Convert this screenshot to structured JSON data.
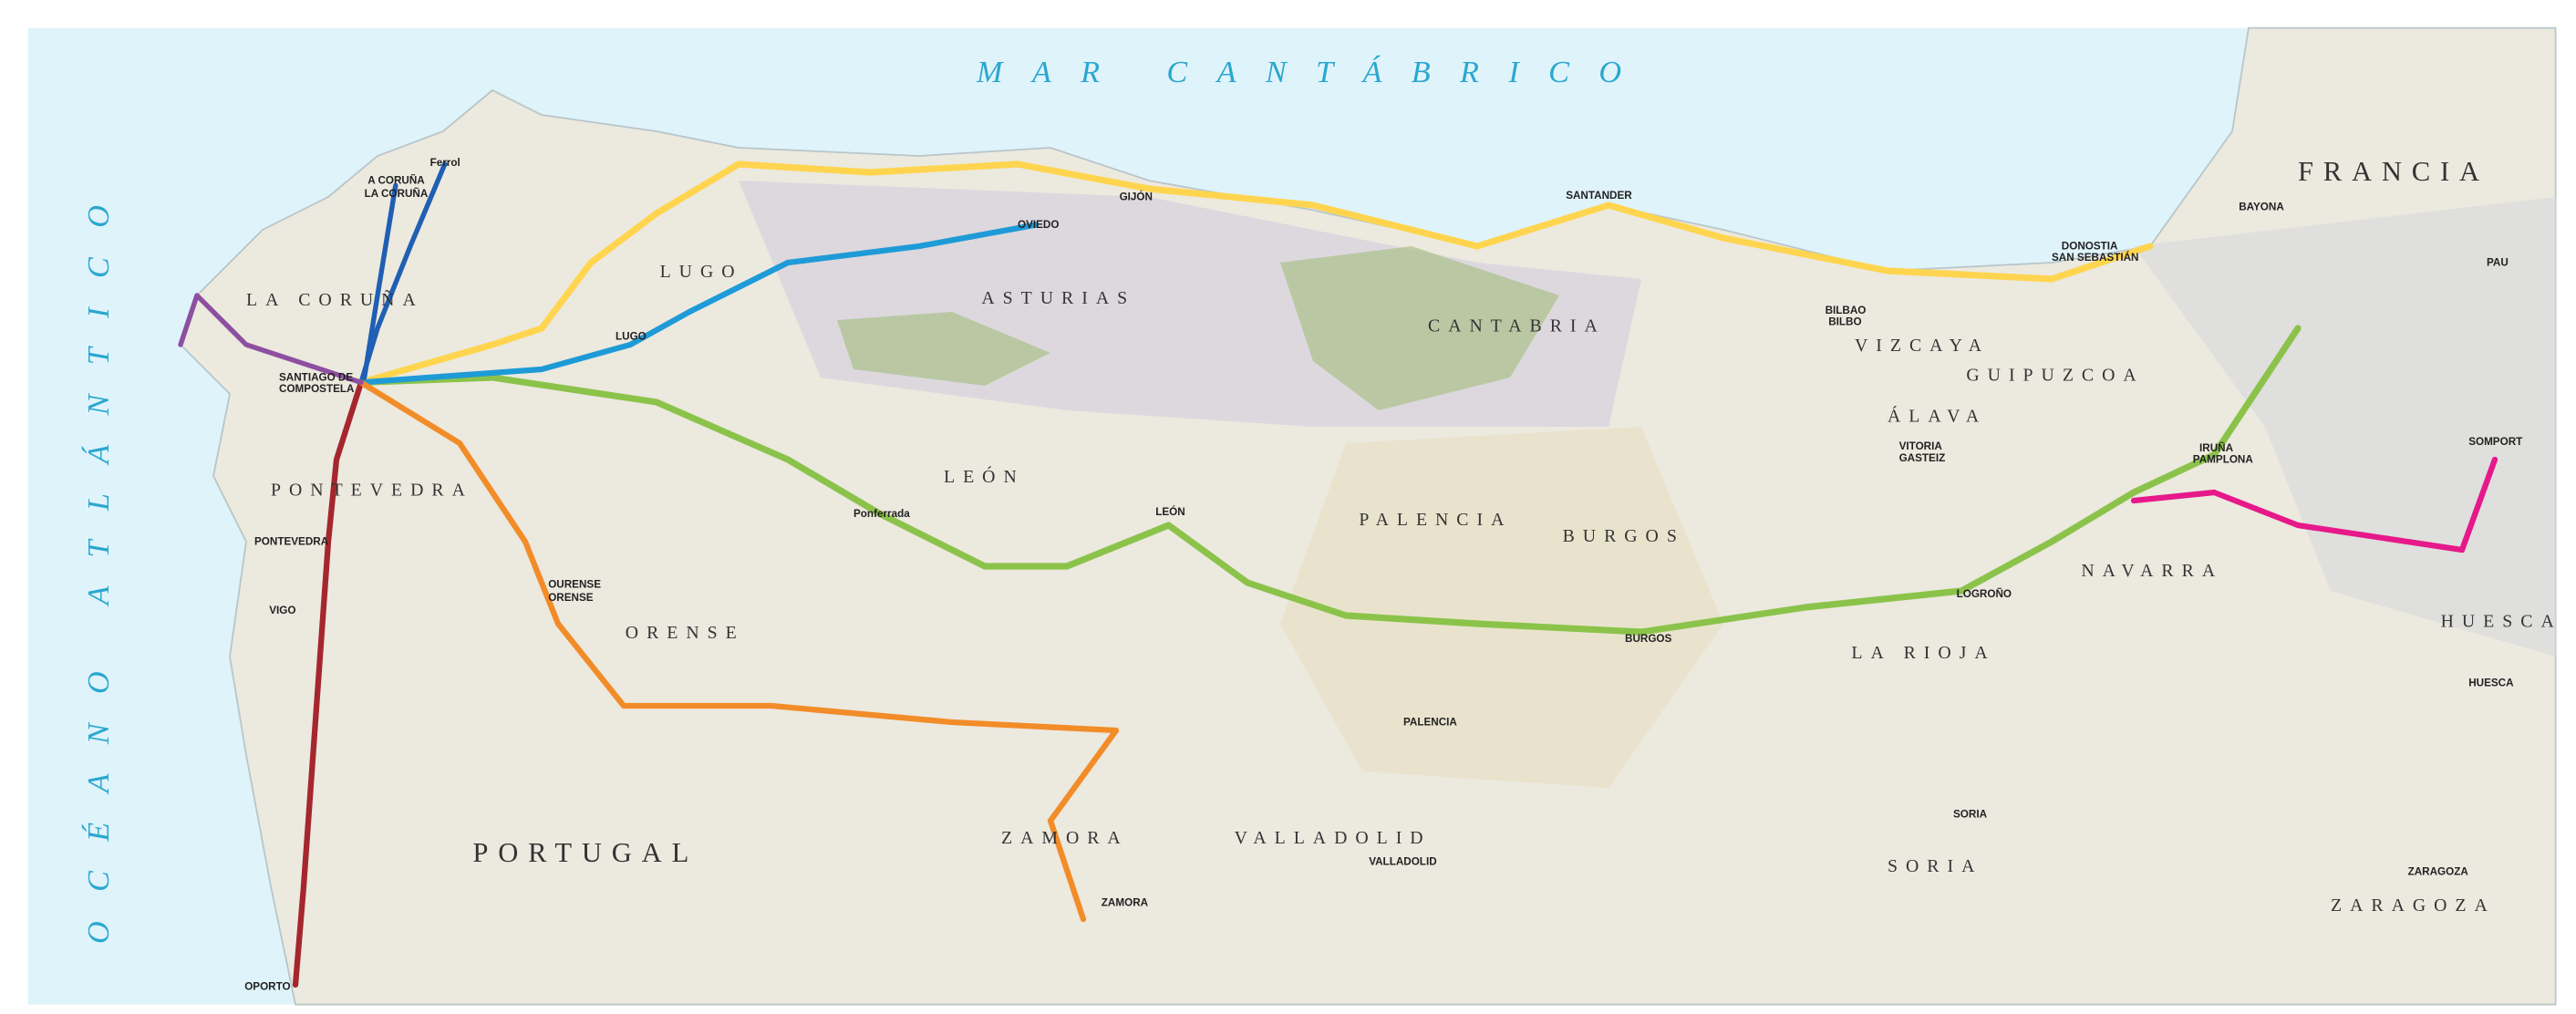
{
  "seas": [
    "MAR CANTÁBRICO",
    "OCÉANO ATLÁNTICO"
  ],
  "regions": [
    "LA CORUÑA",
    "LUGO",
    "ASTURIAS",
    "CANTABRIA",
    "VIZCAYA",
    "GUIPUZCOA",
    "ÁLAVA",
    "FRANCIA",
    "PONTEVEDRA",
    "LEÓN",
    "PALENCIA",
    "BURGOS",
    "NAVARRA",
    "HUESCA",
    "ORENSE",
    "LA RIOJA",
    "PORTUGAL",
    "ZAMORA",
    "VALLADOLID",
    "SORIA",
    "ZARAGOZA"
  ],
  "cities": [
    "A CORUÑA",
    "LA CORUÑA",
    "Ferrol",
    "SANTIAGO DE",
    "COMPOSTELA",
    "LUGO",
    "OVIEDO",
    "GIJÓN",
    "SANTANDER",
    "BILBAO",
    "BILBO",
    "DONOSTIA",
    "SAN SEBASTIÁN",
    "BAYONA",
    "PAU",
    "VITORIA",
    "GASTEIZ",
    "IRUÑA",
    "PAMPLONA",
    "SOMPORT",
    "Ponferrada",
    "LEÓN",
    "BURGOS",
    "LOGROÑO",
    "PONTEVEDRA",
    "VIGO",
    "OURENSE",
    "ORENSE",
    "PALENCIA",
    "VALLADOLID",
    "ZAMORA",
    "SORIA",
    "HUESCA",
    "ZARAGOZA",
    "OPORTO"
  ]
}
